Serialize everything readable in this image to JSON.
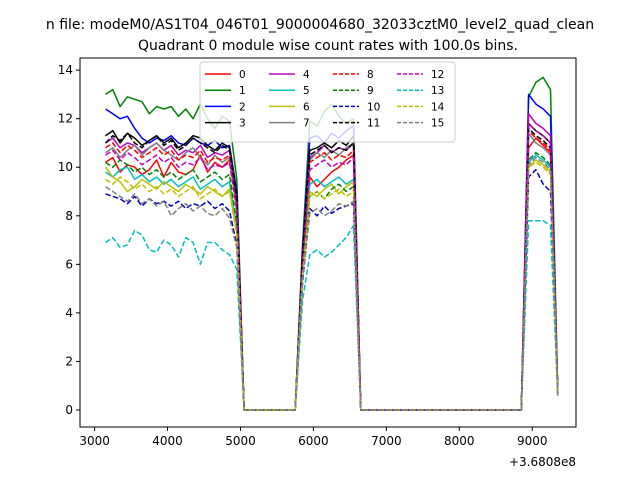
{
  "chart_data": {
    "type": "line",
    "suptitle": "n file: modeM0/AS1T04_046T01_9000004680_32033cztM0_level2_quad_clean",
    "title": "Quadrant 0 module wise count rates with 100.0s bins.",
    "xlabel": "",
    "ylabel": "",
    "offset_text": "+3.6808e8",
    "xlim": [
      2800,
      9600
    ],
    "ylim": [
      -0.7,
      14.5
    ],
    "xticks": [
      3000,
      4000,
      5000,
      6000,
      7000,
      8000,
      9000
    ],
    "yticks": [
      0,
      2,
      4,
      6,
      8,
      10,
      12,
      14
    ],
    "x": [
      3150,
      3250,
      3350,
      3450,
      3550,
      3650,
      3750,
      3850,
      3950,
      4050,
      4150,
      4250,
      4350,
      4450,
      4550,
      4650,
      4750,
      4850,
      4950,
      5050,
      5150,
      5250,
      5350,
      5450,
      5550,
      5650,
      5750,
      5850,
      5950,
      6050,
      6150,
      6250,
      6350,
      6450,
      6550,
      6650,
      6750,
      6850,
      6950,
      7050,
      7150,
      7250,
      7350,
      7450,
      7550,
      7650,
      7750,
      7850,
      7950,
      8050,
      8150,
      8250,
      8350,
      8450,
      8550,
      8650,
      8750,
      8850,
      8950,
      9050,
      9150,
      9250,
      9350
    ],
    "series": [
      {
        "name": "0",
        "color": "#ff0000",
        "dash": "solid",
        "values": [
          10.2,
          10.4,
          9.8,
          10.1,
          10.0,
          9.7,
          9.9,
          10.3,
          9.6,
          10.2,
          9.8,
          9.7,
          9.9,
          10.5,
          9.8,
          10.2,
          10.0,
          10.3,
          8.4,
          0.0,
          0.0,
          0.0,
          0.0,
          0.0,
          0.0,
          0.0,
          0.0,
          5.5,
          9.6,
          9.2,
          9.5,
          9.8,
          10.0,
          10.3,
          10.5,
          0.0,
          0.0,
          0.0,
          0.0,
          0.0,
          0.0,
          0.0,
          0.0,
          0.0,
          0.0,
          0.0,
          0.0,
          0.0,
          0.0,
          0.0,
          0.0,
          0.0,
          0.0,
          0.0,
          0.0,
          0.0,
          0.0,
          0.0,
          10.8,
          11.2,
          10.9,
          10.6,
          0.6
        ]
      },
      {
        "name": "1",
        "color": "#008000",
        "dash": "solid",
        "values": [
          13.0,
          13.2,
          12.5,
          12.9,
          12.8,
          12.7,
          12.2,
          12.5,
          12.4,
          12.5,
          12.1,
          12.4,
          12.0,
          12.6,
          12.0,
          11.6,
          12.1,
          11.9,
          9.5,
          0.0,
          0.0,
          0.0,
          0.0,
          0.0,
          0.0,
          0.0,
          0.0,
          6.8,
          11.9,
          11.7,
          12.3,
          12.6,
          12.1,
          11.8,
          12.0,
          0.0,
          0.0,
          0.0,
          0.0,
          0.0,
          0.0,
          0.0,
          0.0,
          0.0,
          0.0,
          0.0,
          0.0,
          0.0,
          0.0,
          0.0,
          0.0,
          0.0,
          0.0,
          0.0,
          0.0,
          0.0,
          0.0,
          0.0,
          12.9,
          13.5,
          13.7,
          13.2,
          0.8
        ]
      },
      {
        "name": "2",
        "color": "#0000ff",
        "dash": "solid",
        "values": [
          12.4,
          12.2,
          12.0,
          12.1,
          11.6,
          11.2,
          11.0,
          11.2,
          11.1,
          11.3,
          11.0,
          10.9,
          11.2,
          11.0,
          10.9,
          11.1,
          10.8,
          10.9,
          9.0,
          0.0,
          0.0,
          0.0,
          0.0,
          0.0,
          0.0,
          0.0,
          0.0,
          6.5,
          11.2,
          11.3,
          11.0,
          11.4,
          11.2,
          11.5,
          11.7,
          0.0,
          0.0,
          0.0,
          0.0,
          0.0,
          0.0,
          0.0,
          0.0,
          0.0,
          0.0,
          0.0,
          0.0,
          0.0,
          0.0,
          0.0,
          0.0,
          0.0,
          0.0,
          0.0,
          0.0,
          0.0,
          0.0,
          0.0,
          13.0,
          12.6,
          12.4,
          12.1,
          0.7
        ]
      },
      {
        "name": "3",
        "color": "#000000",
        "dash": "solid",
        "values": [
          11.3,
          11.5,
          11.0,
          11.4,
          11.2,
          10.9,
          11.1,
          11.3,
          11.0,
          11.2,
          10.8,
          11.0,
          11.3,
          11.2,
          10.9,
          10.7,
          11.0,
          10.8,
          8.8,
          0.0,
          0.0,
          0.0,
          0.0,
          0.0,
          0.0,
          0.0,
          0.0,
          6.4,
          10.7,
          10.8,
          11.0,
          10.8,
          11.1,
          10.9,
          11.3,
          0.0,
          0.0,
          0.0,
          0.0,
          0.0,
          0.0,
          0.0,
          0.0,
          0.0,
          0.0,
          0.0,
          0.0,
          0.0,
          0.0,
          0.0,
          0.0,
          0.0,
          0.0,
          0.0,
          0.0,
          0.0,
          0.0,
          0.0,
          11.8,
          11.5,
          11.3,
          11.0,
          0.7
        ]
      },
      {
        "name": "4",
        "color": "#bf00bf",
        "dash": "solid",
        "values": [
          11.0,
          11.2,
          10.8,
          11.0,
          10.9,
          10.6,
          10.8,
          11.0,
          10.7,
          10.9,
          10.5,
          10.7,
          10.6,
          10.9,
          10.4,
          10.6,
          10.5,
          10.7,
          8.6,
          0.0,
          0.0,
          0.0,
          0.0,
          0.0,
          0.0,
          0.0,
          0.0,
          6.2,
          10.4,
          10.6,
          10.9,
          10.6,
          10.8,
          10.7,
          11.0,
          0.0,
          0.0,
          0.0,
          0.0,
          0.0,
          0.0,
          0.0,
          0.0,
          0.0,
          0.0,
          0.0,
          0.0,
          0.0,
          0.0,
          0.0,
          0.0,
          0.0,
          0.0,
          0.0,
          0.0,
          0.0,
          0.0,
          0.0,
          12.2,
          11.8,
          11.6,
          11.3,
          0.7
        ]
      },
      {
        "name": "5",
        "color": "#00bfbf",
        "dash": "solid",
        "values": [
          9.8,
          9.6,
          9.9,
          10.0,
          9.5,
          9.7,
          9.4,
          9.6,
          9.3,
          9.5,
          9.2,
          9.4,
          9.6,
          9.1,
          9.3,
          9.5,
          9.2,
          9.4,
          7.5,
          0.0,
          0.0,
          0.0,
          0.0,
          0.0,
          0.0,
          0.0,
          0.0,
          5.8,
          9.3,
          9.5,
          9.2,
          9.4,
          9.6,
          9.3,
          9.5,
          0.0,
          0.0,
          0.0,
          0.0,
          0.0,
          0.0,
          0.0,
          0.0,
          0.0,
          0.0,
          0.0,
          0.0,
          0.0,
          0.0,
          0.0,
          0.0,
          0.0,
          0.0,
          0.0,
          0.0,
          0.0,
          0.0,
          0.0,
          10.2,
          10.5,
          10.3,
          10.0,
          0.6
        ]
      },
      {
        "name": "6",
        "color": "#bfbf00",
        "dash": "solid",
        "values": [
          10.0,
          9.6,
          9.4,
          9.0,
          9.2,
          9.5,
          9.3,
          9.1,
          9.4,
          9.2,
          9.0,
          9.3,
          9.1,
          8.9,
          9.2,
          9.0,
          8.8,
          9.1,
          7.3,
          0.0,
          0.0,
          0.0,
          0.0,
          0.0,
          0.0,
          0.0,
          0.0,
          5.6,
          9.0,
          8.8,
          9.1,
          9.3,
          8.9,
          9.2,
          9.4,
          0.0,
          0.0,
          0.0,
          0.0,
          0.0,
          0.0,
          0.0,
          0.0,
          0.0,
          0.0,
          0.0,
          0.0,
          0.0,
          0.0,
          0.0,
          0.0,
          0.0,
          0.0,
          0.0,
          0.0,
          0.0,
          0.0,
          0.0,
          10.0,
          10.3,
          10.1,
          9.8,
          0.6
        ]
      },
      {
        "name": "7",
        "color": "#808080",
        "dash": "solid",
        "values": [
          10.6,
          10.8,
          10.4,
          10.7,
          10.9,
          10.5,
          10.8,
          11.0,
          10.7,
          10.5,
          10.3,
          10.6,
          10.8,
          10.4,
          10.1,
          10.5,
          10.2,
          10.4,
          8.3,
          0.0,
          0.0,
          0.0,
          0.0,
          0.0,
          0.0,
          0.0,
          0.0,
          6.0,
          10.3,
          10.6,
          10.4,
          10.7,
          10.5,
          10.8,
          11.0,
          0.0,
          0.0,
          0.0,
          0.0,
          0.0,
          0.0,
          0.0,
          0.0,
          0.0,
          0.0,
          0.0,
          0.0,
          0.0,
          0.0,
          0.0,
          0.0,
          0.0,
          0.0,
          0.0,
          0.0,
          0.0,
          0.0,
          0.0,
          11.4,
          11.0,
          10.8,
          10.5,
          0.7
        ]
      },
      {
        "name": "8",
        "color": "#ff0000",
        "dash": "dashed",
        "values": [
          10.8,
          11.0,
          10.6,
          10.9,
          10.7,
          10.4,
          10.6,
          10.8,
          10.5,
          10.7,
          10.3,
          10.5,
          10.4,
          10.7,
          10.2,
          10.4,
          10.3,
          10.5,
          8.4,
          0.0,
          0.0,
          0.0,
          0.0,
          0.0,
          0.0,
          0.0,
          0.0,
          6.1,
          10.2,
          10.4,
          10.6,
          10.3,
          10.5,
          10.4,
          10.7,
          0.0,
          0.0,
          0.0,
          0.0,
          0.0,
          0.0,
          0.0,
          0.0,
          0.0,
          0.0,
          0.0,
          0.0,
          0.0,
          0.0,
          0.0,
          0.0,
          0.0,
          0.0,
          0.0,
          0.0,
          0.0,
          0.0,
          0.0,
          11.5,
          11.2,
          11.0,
          10.7,
          0.7
        ]
      },
      {
        "name": "9",
        "color": "#008000",
        "dash": "dashed",
        "values": [
          10.2,
          10.0,
          10.3,
          10.1,
          9.8,
          10.0,
          9.7,
          9.9,
          9.6,
          9.8,
          9.5,
          9.7,
          9.9,
          9.4,
          9.6,
          9.8,
          9.5,
          9.7,
          7.7,
          0.0,
          0.0,
          0.0,
          0.0,
          0.0,
          0.0,
          0.0,
          0.0,
          5.9,
          8.8,
          9.0,
          8.7,
          9.1,
          9.3,
          9.0,
          9.2,
          0.0,
          0.0,
          0.0,
          0.0,
          0.0,
          0.0,
          0.0,
          0.0,
          0.0,
          0.0,
          0.0,
          0.0,
          0.0,
          0.0,
          0.0,
          0.0,
          0.0,
          0.0,
          0.0,
          0.0,
          0.0,
          0.0,
          0.0,
          10.3,
          10.6,
          10.4,
          10.1,
          0.6
        ]
      },
      {
        "name": "10",
        "color": "#0000bf",
        "dash": "dashed",
        "values": [
          8.9,
          8.8,
          8.7,
          8.5,
          8.8,
          8.4,
          8.7,
          8.5,
          8.6,
          8.4,
          8.6,
          8.3,
          8.5,
          8.4,
          8.6,
          8.3,
          8.5,
          8.2,
          6.8,
          0.0,
          0.0,
          0.0,
          0.0,
          0.0,
          0.0,
          0.0,
          0.0,
          5.2,
          8.3,
          8.0,
          8.4,
          8.1,
          8.3,
          8.4,
          8.5,
          0.0,
          0.0,
          0.0,
          0.0,
          0.0,
          0.0,
          0.0,
          0.0,
          0.0,
          0.0,
          0.0,
          0.0,
          0.0,
          0.0,
          0.0,
          0.0,
          0.0,
          0.0,
          0.0,
          0.0,
          0.0,
          0.0,
          0.0,
          9.6,
          9.9,
          9.3,
          9.0,
          0.6
        ]
      },
      {
        "name": "11",
        "color": "#000000",
        "dash": "dashed",
        "values": [
          11.0,
          11.3,
          11.1,
          11.4,
          11.0,
          10.8,
          11.1,
          11.3,
          10.9,
          11.1,
          10.7,
          10.9,
          11.2,
          11.0,
          10.8,
          10.6,
          10.9,
          10.7,
          8.7,
          0.0,
          0.0,
          0.0,
          0.0,
          0.0,
          0.0,
          0.0,
          0.0,
          6.3,
          10.5,
          10.7,
          10.9,
          10.6,
          10.8,
          10.7,
          11.0,
          0.0,
          0.0,
          0.0,
          0.0,
          0.0,
          0.0,
          0.0,
          0.0,
          0.0,
          0.0,
          0.0,
          0.0,
          0.0,
          0.0,
          0.0,
          0.0,
          0.0,
          0.0,
          0.0,
          0.0,
          0.0,
          0.0,
          0.0,
          11.6,
          11.3,
          11.1,
          10.8,
          0.7
        ]
      },
      {
        "name": "12",
        "color": "#bf00bf",
        "dash": "dashed",
        "values": [
          10.5,
          10.7,
          10.3,
          10.6,
          10.4,
          10.1,
          10.3,
          10.5,
          10.2,
          10.4,
          10.0,
          10.2,
          10.1,
          10.4,
          9.9,
          10.1,
          10.0,
          10.2,
          8.2,
          0.0,
          0.0,
          0.0,
          0.0,
          0.0,
          0.0,
          0.0,
          0.0,
          5.9,
          9.9,
          10.1,
          10.3,
          10.0,
          10.2,
          10.1,
          10.4,
          0.0,
          0.0,
          0.0,
          0.0,
          0.0,
          0.0,
          0.0,
          0.0,
          0.0,
          0.0,
          0.0,
          0.0,
          0.0,
          0.0,
          0.0,
          0.0,
          0.0,
          0.0,
          0.0,
          0.0,
          0.0,
          0.0,
          0.0,
          11.8,
          11.5,
          11.3,
          11.0,
          0.7
        ]
      },
      {
        "name": "13",
        "color": "#00bfbf",
        "dash": "dashed",
        "values": [
          6.9,
          7.1,
          6.7,
          6.8,
          7.4,
          7.2,
          6.6,
          6.5,
          7.0,
          6.8,
          6.3,
          7.1,
          6.9,
          6.0,
          6.9,
          6.9,
          6.6,
          6.4,
          5.8,
          0.0,
          0.0,
          0.0,
          0.0,
          0.0,
          0.0,
          0.0,
          0.0,
          4.5,
          6.4,
          6.6,
          6.3,
          6.5,
          6.8,
          7.1,
          7.6,
          0.0,
          0.0,
          0.0,
          0.0,
          0.0,
          0.0,
          0.0,
          0.0,
          0.0,
          0.0,
          0.0,
          0.0,
          0.0,
          0.0,
          0.0,
          0.0,
          0.0,
          0.0,
          0.0,
          0.0,
          0.0,
          0.0,
          0.0,
          7.8,
          7.8,
          7.8,
          7.6,
          0.5
        ]
      },
      {
        "name": "14",
        "color": "#bfbf00",
        "dash": "dashed",
        "values": [
          9.5,
          9.3,
          9.6,
          9.4,
          9.1,
          9.3,
          9.0,
          9.2,
          8.9,
          9.1,
          8.8,
          9.0,
          9.2,
          8.7,
          8.9,
          9.1,
          8.8,
          9.0,
          7.2,
          0.0,
          0.0,
          0.0,
          0.0,
          0.0,
          0.0,
          0.0,
          0.0,
          5.5,
          8.8,
          9.0,
          8.7,
          8.9,
          9.1,
          8.8,
          9.0,
          0.0,
          0.0,
          0.0,
          0.0,
          0.0,
          0.0,
          0.0,
          0.0,
          0.0,
          0.0,
          0.0,
          0.0,
          0.0,
          0.0,
          0.0,
          0.0,
          0.0,
          0.0,
          0.0,
          0.0,
          0.0,
          0.0,
          0.0,
          10.0,
          10.2,
          10.0,
          9.7,
          0.6
        ]
      },
      {
        "name": "15",
        "color": "#808080",
        "dash": "dashed",
        "values": [
          9.2,
          9.0,
          8.8,
          8.6,
          8.9,
          8.5,
          8.7,
          8.4,
          8.6,
          8.0,
          8.3,
          8.5,
          8.2,
          8.4,
          8.1,
          8.0,
          8.3,
          7.9,
          6.7,
          0.0,
          0.0,
          0.0,
          0.0,
          0.0,
          0.0,
          0.0,
          0.0,
          5.3,
          8.1,
          8.3,
          8.0,
          8.2,
          8.5,
          8.4,
          8.6,
          0.0,
          0.0,
          0.0,
          0.0,
          0.0,
          0.0,
          0.0,
          0.0,
          0.0,
          0.0,
          0.0,
          0.0,
          0.0,
          0.0,
          0.0,
          0.0,
          0.0,
          0.0,
          0.0,
          0.0,
          0.0,
          0.0,
          0.0,
          10.1,
          10.4,
          10.2,
          9.9,
          0.6
        ]
      }
    ],
    "legend_location": "upper-center",
    "legend_columns": 4
  }
}
